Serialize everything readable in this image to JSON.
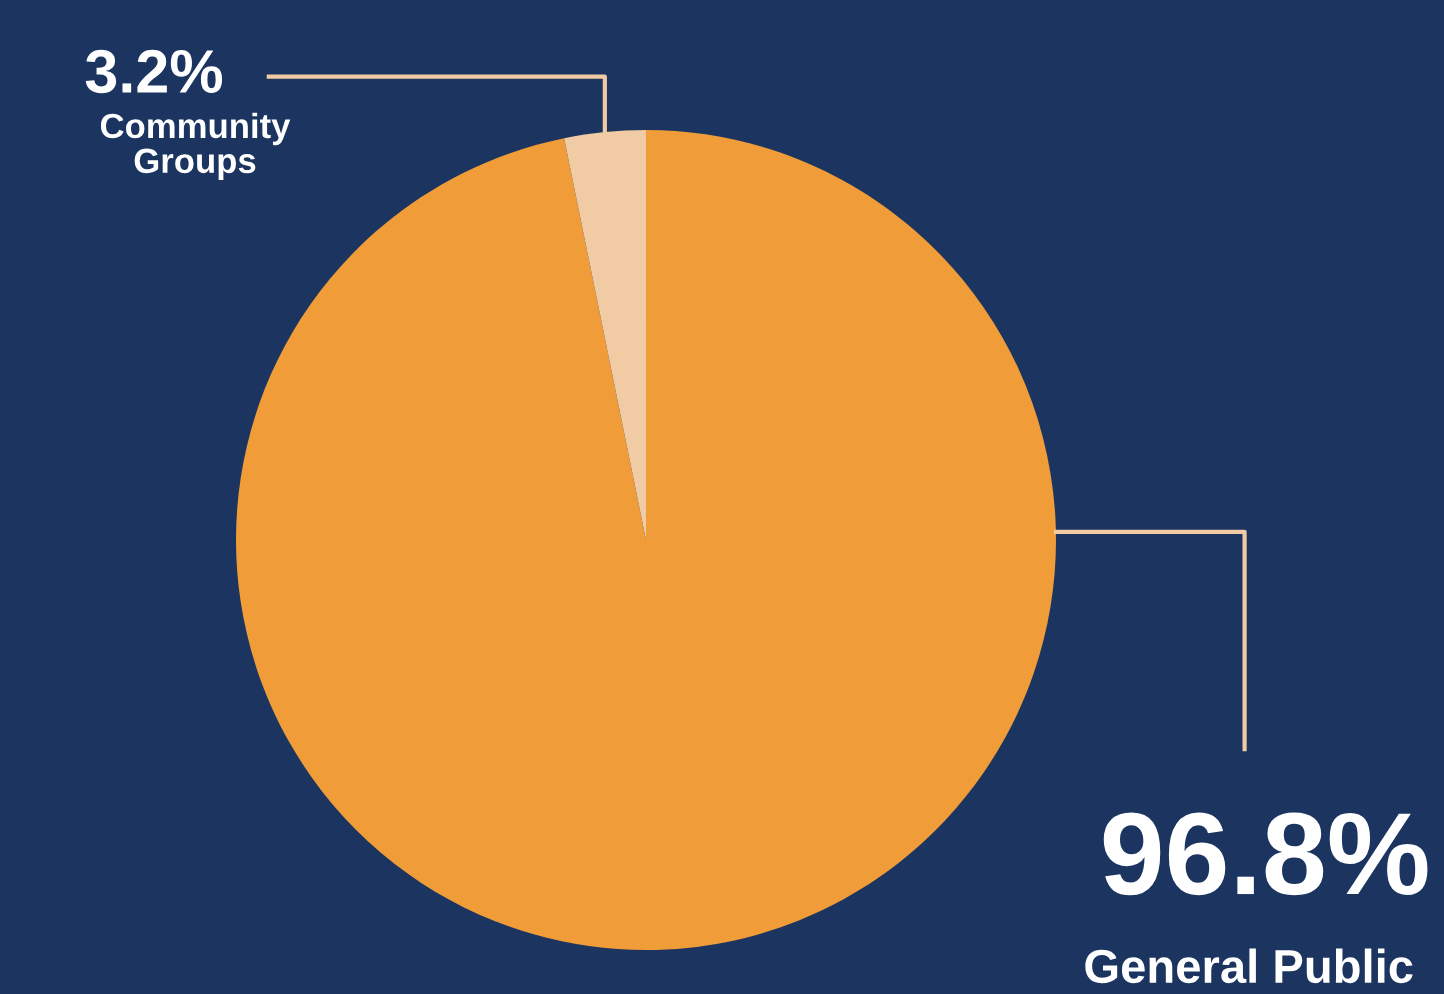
{
  "chart_data": {
    "type": "pie",
    "categories": [
      "General Public",
      "Community Groups"
    ],
    "values": [
      96.8,
      3.2
    ],
    "colors": [
      "#f09c38",
      "#f0cba4"
    ],
    "value_labels": [
      "96.8%",
      "3.2%"
    ],
    "legend": false
  }
}
